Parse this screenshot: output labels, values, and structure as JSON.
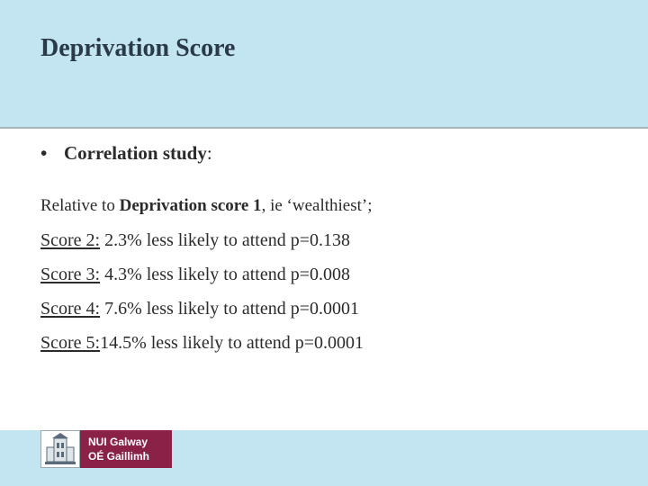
{
  "slide": {
    "title": "Deprivation Score",
    "bullet": {
      "marker": "•",
      "label": "Correlation study",
      "suffix": ":"
    },
    "intro": {
      "prefix": "Relative to ",
      "bold": "Deprivation score 1",
      "suffix": ", ie ‘wealthiest’;"
    },
    "scores": [
      {
        "label": "Score 2:",
        "text": " 2.3% less likely to attend p=0.138"
      },
      {
        "label": "Score 3:",
        "text": " 4.3% less likely to attend p=0.008"
      },
      {
        "label": "Score 4:",
        "text": " 7.6% less likely to attend p=0.0001"
      },
      {
        "label": "Score 5:",
        "text": "14.5% less likely to attend p=0.0001"
      }
    ]
  },
  "footer": {
    "logo_line1": "NUI Galway",
    "logo_line2": "OÉ Gaillimh"
  },
  "colors": {
    "header_bg": "#c3e4f1",
    "logo_bg": "#8a2247",
    "title_text": "#2a3a4a"
  }
}
